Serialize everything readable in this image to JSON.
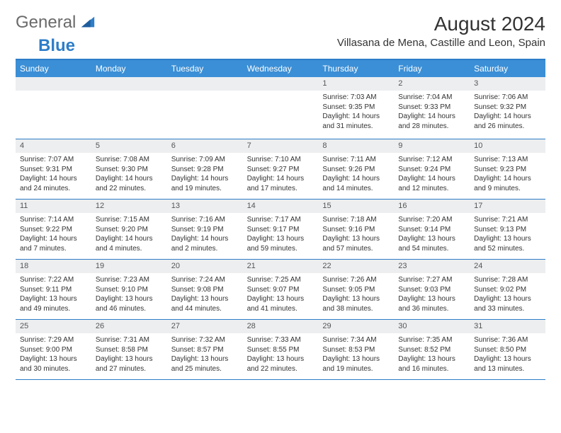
{
  "logo": {
    "word1": "General",
    "word2": "Blue"
  },
  "title": "August 2024",
  "location": "Villasana de Mena, Castille and Leon, Spain",
  "colors": {
    "header_bg": "#3b8fd6",
    "header_text": "#ffffff",
    "rule": "#2d7dc8",
    "daynum_bg": "#eceef0",
    "text": "#333333"
  },
  "font": {
    "title_size": 28,
    "location_size": 15,
    "header_size": 12,
    "body_size": 10
  },
  "dayNames": [
    "Sunday",
    "Monday",
    "Tuesday",
    "Wednesday",
    "Thursday",
    "Friday",
    "Saturday"
  ],
  "weeks": [
    [
      null,
      null,
      null,
      null,
      {
        "n": "1",
        "sr": "Sunrise: 7:03 AM",
        "ss": "Sunset: 9:35 PM",
        "dl1": "Daylight: 14 hours",
        "dl2": "and 31 minutes."
      },
      {
        "n": "2",
        "sr": "Sunrise: 7:04 AM",
        "ss": "Sunset: 9:33 PM",
        "dl1": "Daylight: 14 hours",
        "dl2": "and 28 minutes."
      },
      {
        "n": "3",
        "sr": "Sunrise: 7:06 AM",
        "ss": "Sunset: 9:32 PM",
        "dl1": "Daylight: 14 hours",
        "dl2": "and 26 minutes."
      }
    ],
    [
      {
        "n": "4",
        "sr": "Sunrise: 7:07 AM",
        "ss": "Sunset: 9:31 PM",
        "dl1": "Daylight: 14 hours",
        "dl2": "and 24 minutes."
      },
      {
        "n": "5",
        "sr": "Sunrise: 7:08 AM",
        "ss": "Sunset: 9:30 PM",
        "dl1": "Daylight: 14 hours",
        "dl2": "and 22 minutes."
      },
      {
        "n": "6",
        "sr": "Sunrise: 7:09 AM",
        "ss": "Sunset: 9:28 PM",
        "dl1": "Daylight: 14 hours",
        "dl2": "and 19 minutes."
      },
      {
        "n": "7",
        "sr": "Sunrise: 7:10 AM",
        "ss": "Sunset: 9:27 PM",
        "dl1": "Daylight: 14 hours",
        "dl2": "and 17 minutes."
      },
      {
        "n": "8",
        "sr": "Sunrise: 7:11 AM",
        "ss": "Sunset: 9:26 PM",
        "dl1": "Daylight: 14 hours",
        "dl2": "and 14 minutes."
      },
      {
        "n": "9",
        "sr": "Sunrise: 7:12 AM",
        "ss": "Sunset: 9:24 PM",
        "dl1": "Daylight: 14 hours",
        "dl2": "and 12 minutes."
      },
      {
        "n": "10",
        "sr": "Sunrise: 7:13 AM",
        "ss": "Sunset: 9:23 PM",
        "dl1": "Daylight: 14 hours",
        "dl2": "and 9 minutes."
      }
    ],
    [
      {
        "n": "11",
        "sr": "Sunrise: 7:14 AM",
        "ss": "Sunset: 9:22 PM",
        "dl1": "Daylight: 14 hours",
        "dl2": "and 7 minutes."
      },
      {
        "n": "12",
        "sr": "Sunrise: 7:15 AM",
        "ss": "Sunset: 9:20 PM",
        "dl1": "Daylight: 14 hours",
        "dl2": "and 4 minutes."
      },
      {
        "n": "13",
        "sr": "Sunrise: 7:16 AM",
        "ss": "Sunset: 9:19 PM",
        "dl1": "Daylight: 14 hours",
        "dl2": "and 2 minutes."
      },
      {
        "n": "14",
        "sr": "Sunrise: 7:17 AM",
        "ss": "Sunset: 9:17 PM",
        "dl1": "Daylight: 13 hours",
        "dl2": "and 59 minutes."
      },
      {
        "n": "15",
        "sr": "Sunrise: 7:18 AM",
        "ss": "Sunset: 9:16 PM",
        "dl1": "Daylight: 13 hours",
        "dl2": "and 57 minutes."
      },
      {
        "n": "16",
        "sr": "Sunrise: 7:20 AM",
        "ss": "Sunset: 9:14 PM",
        "dl1": "Daylight: 13 hours",
        "dl2": "and 54 minutes."
      },
      {
        "n": "17",
        "sr": "Sunrise: 7:21 AM",
        "ss": "Sunset: 9:13 PM",
        "dl1": "Daylight: 13 hours",
        "dl2": "and 52 minutes."
      }
    ],
    [
      {
        "n": "18",
        "sr": "Sunrise: 7:22 AM",
        "ss": "Sunset: 9:11 PM",
        "dl1": "Daylight: 13 hours",
        "dl2": "and 49 minutes."
      },
      {
        "n": "19",
        "sr": "Sunrise: 7:23 AM",
        "ss": "Sunset: 9:10 PM",
        "dl1": "Daylight: 13 hours",
        "dl2": "and 46 minutes."
      },
      {
        "n": "20",
        "sr": "Sunrise: 7:24 AM",
        "ss": "Sunset: 9:08 PM",
        "dl1": "Daylight: 13 hours",
        "dl2": "and 44 minutes."
      },
      {
        "n": "21",
        "sr": "Sunrise: 7:25 AM",
        "ss": "Sunset: 9:07 PM",
        "dl1": "Daylight: 13 hours",
        "dl2": "and 41 minutes."
      },
      {
        "n": "22",
        "sr": "Sunrise: 7:26 AM",
        "ss": "Sunset: 9:05 PM",
        "dl1": "Daylight: 13 hours",
        "dl2": "and 38 minutes."
      },
      {
        "n": "23",
        "sr": "Sunrise: 7:27 AM",
        "ss": "Sunset: 9:03 PM",
        "dl1": "Daylight: 13 hours",
        "dl2": "and 36 minutes."
      },
      {
        "n": "24",
        "sr": "Sunrise: 7:28 AM",
        "ss": "Sunset: 9:02 PM",
        "dl1": "Daylight: 13 hours",
        "dl2": "and 33 minutes."
      }
    ],
    [
      {
        "n": "25",
        "sr": "Sunrise: 7:29 AM",
        "ss": "Sunset: 9:00 PM",
        "dl1": "Daylight: 13 hours",
        "dl2": "and 30 minutes."
      },
      {
        "n": "26",
        "sr": "Sunrise: 7:31 AM",
        "ss": "Sunset: 8:58 PM",
        "dl1": "Daylight: 13 hours",
        "dl2": "and 27 minutes."
      },
      {
        "n": "27",
        "sr": "Sunrise: 7:32 AM",
        "ss": "Sunset: 8:57 PM",
        "dl1": "Daylight: 13 hours",
        "dl2": "and 25 minutes."
      },
      {
        "n": "28",
        "sr": "Sunrise: 7:33 AM",
        "ss": "Sunset: 8:55 PM",
        "dl1": "Daylight: 13 hours",
        "dl2": "and 22 minutes."
      },
      {
        "n": "29",
        "sr": "Sunrise: 7:34 AM",
        "ss": "Sunset: 8:53 PM",
        "dl1": "Daylight: 13 hours",
        "dl2": "and 19 minutes."
      },
      {
        "n": "30",
        "sr": "Sunrise: 7:35 AM",
        "ss": "Sunset: 8:52 PM",
        "dl1": "Daylight: 13 hours",
        "dl2": "and 16 minutes."
      },
      {
        "n": "31",
        "sr": "Sunrise: 7:36 AM",
        "ss": "Sunset: 8:50 PM",
        "dl1": "Daylight: 13 hours",
        "dl2": "and 13 minutes."
      }
    ]
  ]
}
